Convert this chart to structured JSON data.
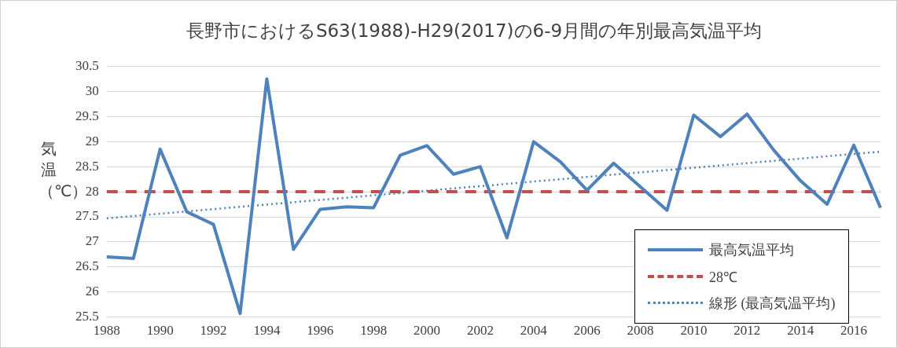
{
  "chart_data": {
    "type": "line",
    "title": "長野市におけるS63(1988)-H29(2017)の6-9月間の年別最高気温平均",
    "ylabel": "気温（℃）",
    "categories": [
      "1988",
      null,
      "1990",
      null,
      "1992",
      null,
      "1994",
      null,
      "1996",
      null,
      "1998",
      null,
      "2000",
      null,
      "2002",
      null,
      "2004",
      null,
      "2006",
      null,
      "2008",
      null,
      "2010",
      null,
      "2012",
      null,
      "2014",
      null,
      "2016",
      null
    ],
    "series": [
      {
        "name": "最高気温平均",
        "color": "#4f81bd",
        "line_style": "solid",
        "values": [
          26.7,
          26.67,
          28.85,
          27.6,
          27.35,
          25.57,
          30.25,
          26.85,
          27.65,
          27.7,
          27.68,
          28.73,
          28.92,
          28.35,
          28.5,
          27.08,
          29.0,
          28.6,
          28.03,
          28.57,
          28.1,
          27.63,
          29.53,
          29.1,
          29.55,
          28.83,
          28.22,
          27.75,
          28.93,
          27.68
        ]
      },
      {
        "name": "28℃",
        "color": "#c0504d",
        "line_style": "dashed",
        "values": [
          28,
          28,
          28,
          28,
          28,
          28,
          28,
          28,
          28,
          28,
          28,
          28,
          28,
          28,
          28,
          28,
          28,
          28,
          28,
          28,
          28,
          28,
          28,
          28,
          28,
          28,
          28,
          28,
          28,
          28
        ]
      },
      {
        "name": "線形 (最高気温平均)",
        "color": "#4f81bd",
        "line_style": "dotted",
        "values": [
          27.47,
          null,
          null,
          null,
          null,
          null,
          null,
          null,
          null,
          null,
          null,
          null,
          null,
          null,
          null,
          null,
          null,
          null,
          null,
          null,
          null,
          null,
          null,
          null,
          null,
          null,
          null,
          null,
          null,
          28.8
        ]
      }
    ],
    "ylim": [
      25.5,
      30.5
    ],
    "yticks": [
      25.5,
      26,
      26.5,
      27,
      27.5,
      28,
      28.5,
      29,
      29.5,
      30,
      30.5
    ],
    "grid": "y",
    "legend": "bottom right",
    "marker": "none"
  }
}
